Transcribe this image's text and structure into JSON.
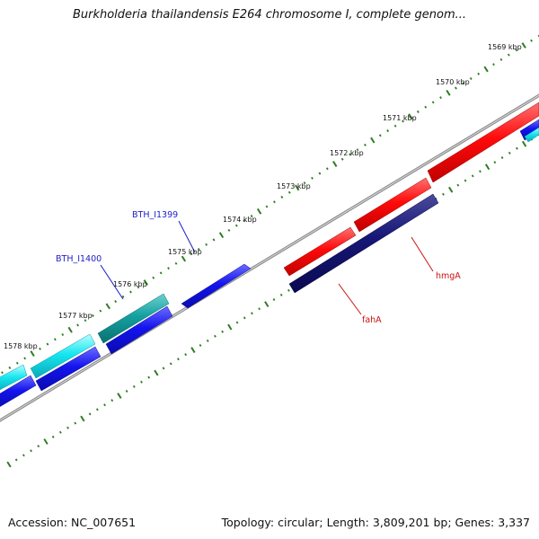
{
  "title": "Burkholderia thailandensis E264 chromosome I, complete genom...",
  "footer": {
    "accession": "Accession: NC_007651",
    "summary": "Topology: circular; Length: 3,809,201 bp; Genes: 3,337"
  },
  "ruler_labels": [
    "1569 kbp",
    "1570 kbp",
    "1571 kbp",
    "1572 kbp",
    "1573 kbp",
    "1574 kbp",
    "1575 kbp",
    "1576 kbp",
    "1577 kbp",
    "1578 kbp"
  ],
  "gene_labels": [
    {
      "name": "BTH_I1399",
      "color": "#1c1cc8"
    },
    {
      "name": "BTH_I1400",
      "color": "#1c1cc8"
    },
    {
      "name": "fahA",
      "color": "#cc1111"
    },
    {
      "name": "hmgA",
      "color": "#cc1111"
    }
  ],
  "colors": {
    "backbone": "#8a8a8a",
    "ruler_ticks": "#2e7d22",
    "cds_forward": "#1414e6",
    "cds_reverse": "#141478",
    "rna_light": "#14e6e6",
    "rna_dark": "#14a0a0",
    "highlight_red": "#ff0a0a"
  }
}
